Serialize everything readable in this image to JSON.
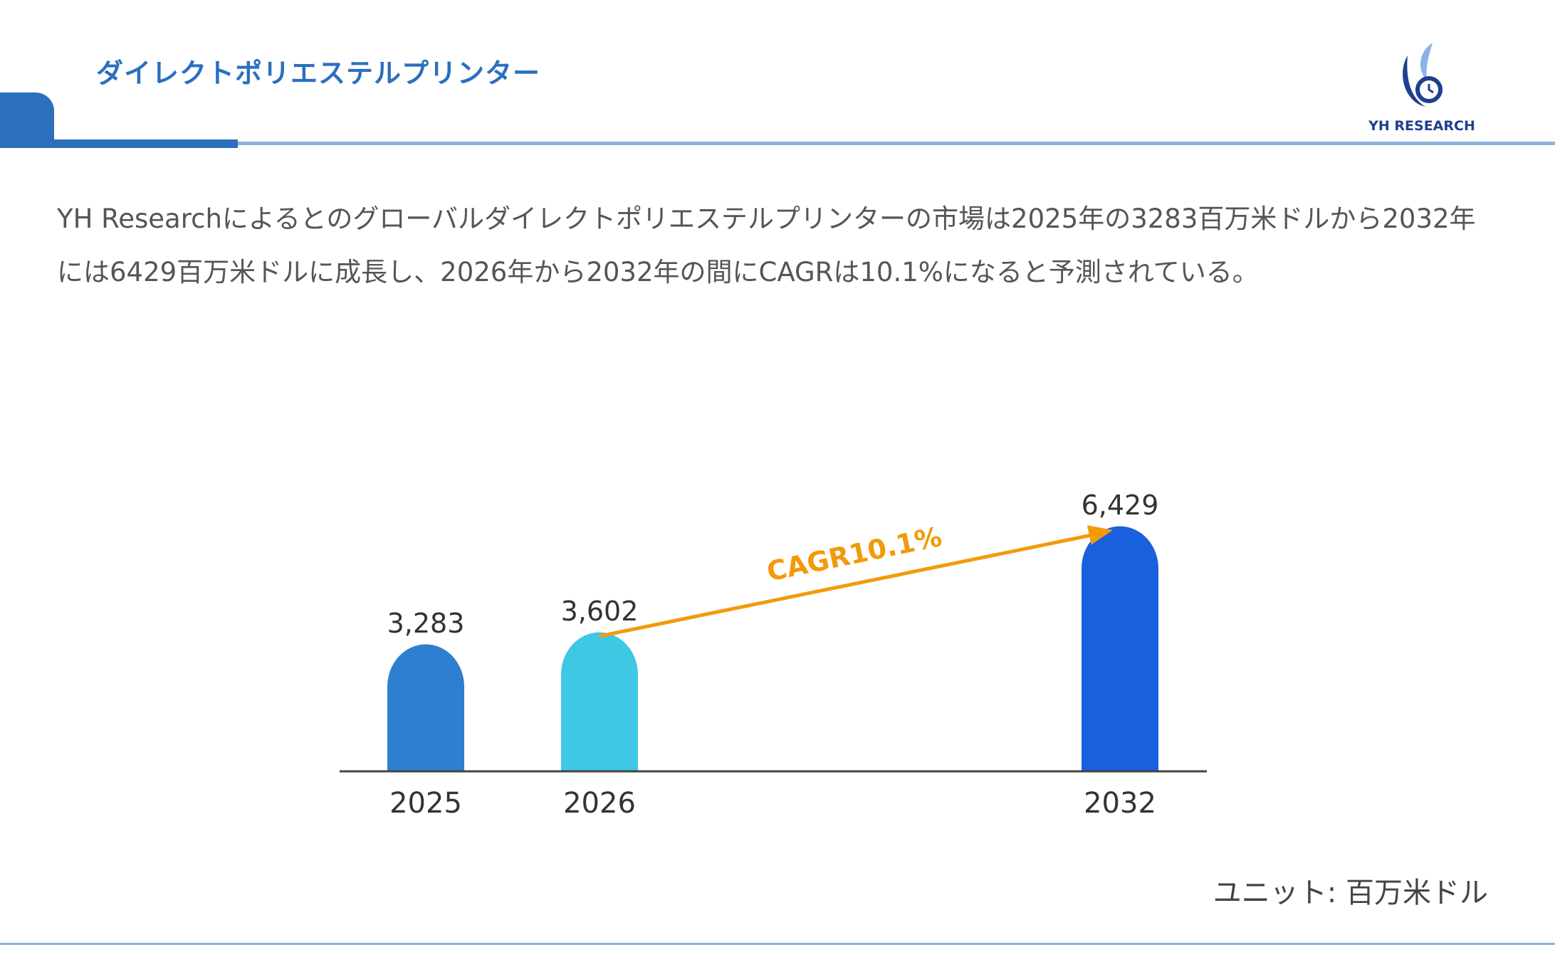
{
  "header": {
    "title": "ダイレクトポリエステルプリンター",
    "logo_text": "YH RESEARCH"
  },
  "description": "YH Researchによるとのグローバルダイレクトポリエステルプリンターの市場は2025年の3283百万米ドルから2032年には6429百万米ドルに成長し、2026年から2032年の間にCAGRは10.1%になると予測されている。",
  "unit_label": "ユニット: 百万米ドル",
  "chart_data": {
    "type": "bar",
    "categories": [
      "2025",
      "2026",
      "2032"
    ],
    "values": [
      3283,
      3602,
      6429
    ],
    "value_labels": [
      "3,283",
      "3,602",
      "6,429"
    ],
    "colors": [
      "#2f7fd0",
      "#3ec8e4",
      "#1a5fdc"
    ],
    "annotation": {
      "text": "CAGR10.1%",
      "from": "2026",
      "to": "2032",
      "color": "#f39a0a"
    },
    "axis_color": "#444444"
  }
}
